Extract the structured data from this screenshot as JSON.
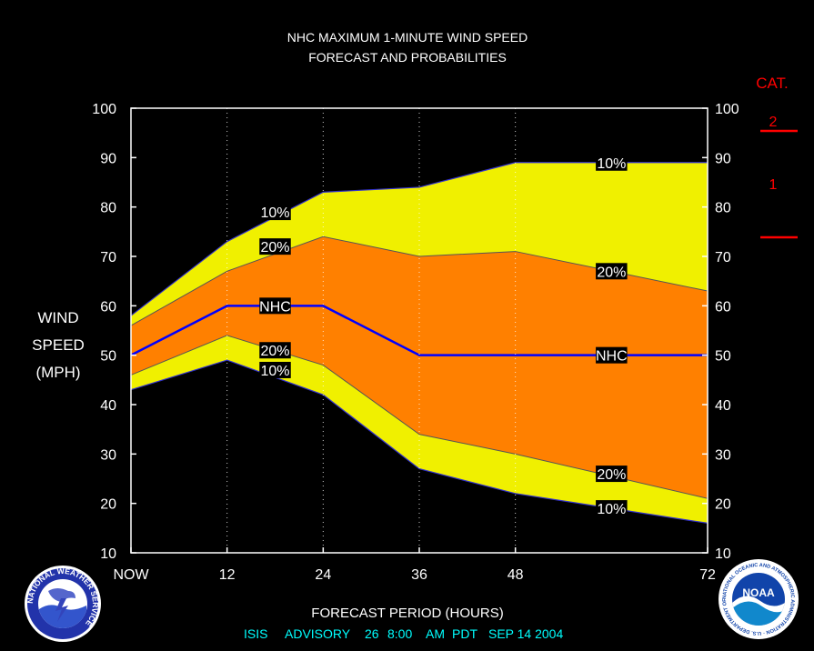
{
  "header": {
    "title_line1": "NHC MAXIMUM 1-MINUTE WIND SPEED",
    "title_line2": "FORECAST AND PROBABILITIES"
  },
  "ylabel": [
    "WIND",
    "SPEED",
    "(MPH)"
  ],
  "xlabel": "FORECAST PERIOD (HOURS)",
  "advisory": {
    "storm": "ISIS",
    "advisory_label": "ADVISORY",
    "number": "26",
    "time": "8:00",
    "ampm": "AM",
    "tz": "PDT",
    "date": "SEP 14 2004"
  },
  "category_key": {
    "title": "CAT.",
    "labels": [
      "2",
      "1"
    ],
    "color": "#ff0000"
  },
  "logos": {
    "left": "NATIONAL WEATHER SERVICE",
    "right": "NOAA",
    "right_ring": "NATIONAL OCEANIC AND ATMOSPHERIC ADMINISTRATION · U.S. DEPARTMENT OF COMMERCE"
  },
  "colors": {
    "background": "#000000",
    "outer_band": "#f0f000",
    "inner_band": "#ff8000",
    "nhc_line": "#0000ff",
    "text": "#ffffff",
    "advisory_text": "#00ffff"
  },
  "chart_data": {
    "type": "area",
    "title": "NHC MAXIMUM 1-MINUTE WIND SPEED FORECAST AND PROBABILITIES",
    "xlabel": "FORECAST PERIOD (HOURS)",
    "ylabel": "WIND SPEED (MPH)",
    "x": [
      0,
      12,
      24,
      36,
      48,
      72
    ],
    "x_tick_labels": [
      "NOW",
      "12",
      "24",
      "36",
      "48",
      "72"
    ],
    "xlim": [
      0,
      72
    ],
    "ylim": [
      10,
      100
    ],
    "y_ticks": [
      10,
      20,
      30,
      40,
      50,
      60,
      70,
      80,
      90,
      100
    ],
    "grid": "vertical dotted at 12, 24, 36, 48",
    "series": [
      {
        "name": "10%",
        "band": "upper",
        "values": [
          58,
          73,
          83,
          84,
          89,
          89
        ]
      },
      {
        "name": "20%",
        "band": "upper",
        "values": [
          56,
          67,
          74,
          70,
          71,
          63
        ]
      },
      {
        "name": "NHC",
        "values": [
          50,
          60,
          60,
          50,
          50,
          50
        ]
      },
      {
        "name": "20%",
        "band": "lower",
        "values": [
          46,
          54,
          48,
          34,
          30,
          21
        ]
      },
      {
        "name": "10%",
        "band": "lower",
        "values": [
          43,
          49,
          42,
          27,
          22,
          16
        ]
      }
    ],
    "series_labels": [
      {
        "text": "10%",
        "x": 18,
        "y": 79
      },
      {
        "text": "20%",
        "x": 18,
        "y": 72
      },
      {
        "text": "NHC",
        "x": 18,
        "y": 60
      },
      {
        "text": "20%",
        "x": 18,
        "y": 51
      },
      {
        "text": "10%",
        "x": 18,
        "y": 47
      },
      {
        "text": "10%",
        "x": 60,
        "y": 89
      },
      {
        "text": "20%",
        "x": 60,
        "y": 67
      },
      {
        "text": "NHC",
        "x": 60,
        "y": 50
      },
      {
        "text": "20%",
        "x": 60,
        "y": 26
      },
      {
        "text": "10%",
        "x": 60,
        "y": 19
      }
    ],
    "category_thresholds": [
      {
        "category": "2",
        "min_mph": 96
      },
      {
        "category": "1",
        "min_mph": 74
      }
    ]
  }
}
